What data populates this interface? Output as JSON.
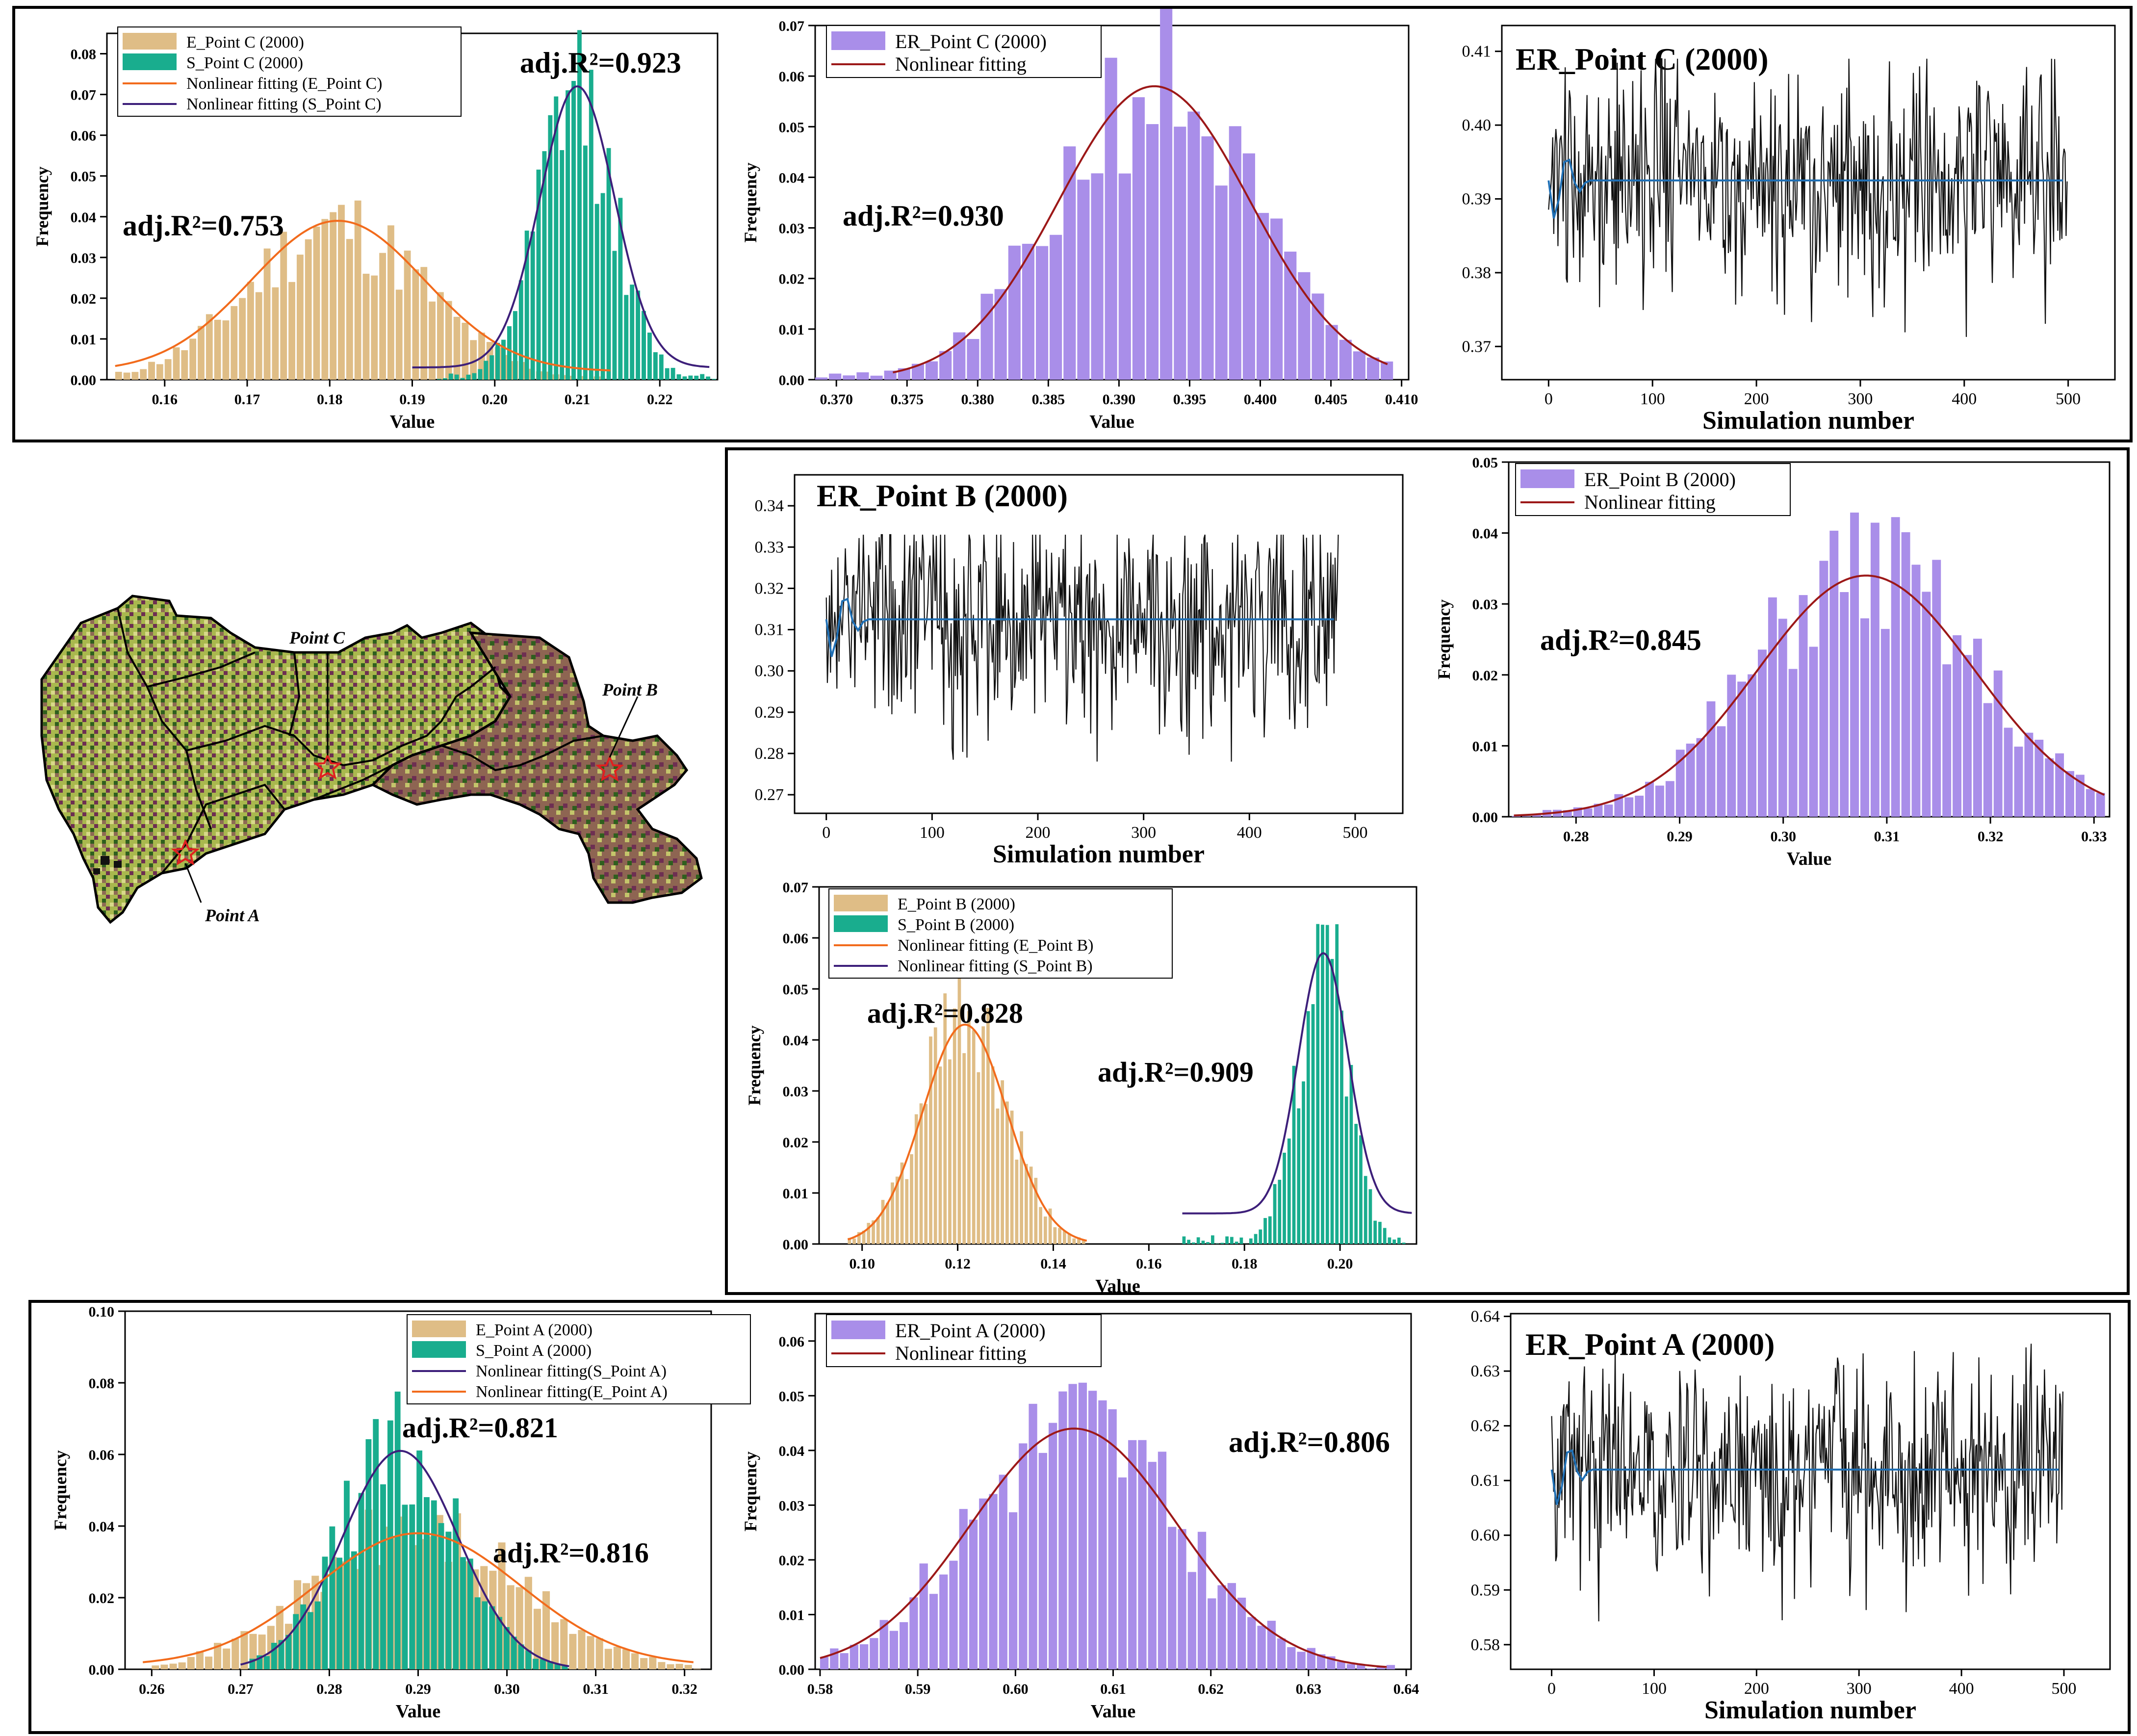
{
  "colors": {
    "tan": "#dfbd86",
    "teal": "#19ad8e",
    "purple": "#a98ee9",
    "orange": "#f26b1c",
    "darkpurple": "#3d1f7a",
    "darkred": "#9c1818",
    "trace": "#111111",
    "mean": "#1f6fb4"
  },
  "panel_c": {
    "hist_es": {
      "legend": [
        "E_Point C (2000)",
        "S_Point C (2000)",
        "Nonlinear fitting (E_Point C)",
        "Nonlinear fitting (S_Point C)"
      ],
      "xlabel": "Value",
      "ylabel": "Frequency",
      "x_ticks": [
        "0.16",
        "0.17",
        "0.18",
        "0.19",
        "0.20",
        "0.21",
        "0.22"
      ],
      "y_ticks": [
        "0.00",
        "0.01",
        "0.02",
        "0.03",
        "0.04",
        "0.05",
        "0.06",
        "0.07",
        "0.08"
      ],
      "annotations": [
        "adj.R²=0.753",
        "adj.R²=0.923"
      ]
    },
    "hist_er": {
      "legend": [
        "ER_Point C (2000)",
        "Nonlinear fitting"
      ],
      "xlabel": "Value",
      "ylabel": "Frequency",
      "x_ticks": [
        "0.370",
        "0.375",
        "0.380",
        "0.385",
        "0.390",
        "0.395",
        "0.400",
        "0.405",
        "0.410"
      ],
      "y_ticks": [
        "0.00",
        "0.01",
        "0.02",
        "0.03",
        "0.04",
        "0.05",
        "0.06",
        "0.07"
      ],
      "annotations": [
        "adj.R²=0.930"
      ]
    },
    "trace": {
      "title": "ER_Point C (2000)",
      "xlabel": "Simulation number",
      "x_ticks": [
        "0",
        "100",
        "200",
        "300",
        "400",
        "500"
      ],
      "y_ticks": [
        "0.37",
        "0.38",
        "0.39",
        "0.40",
        "0.41"
      ]
    }
  },
  "panel_b": {
    "trace": {
      "title": "ER_Point B (2000)",
      "xlabel": "Simulation number",
      "x_ticks": [
        "0",
        "100",
        "200",
        "300",
        "400",
        "500"
      ],
      "y_ticks": [
        "0.27",
        "0.28",
        "0.29",
        "0.30",
        "0.31",
        "0.32",
        "0.33",
        "0.34"
      ]
    },
    "hist_er": {
      "legend": [
        "ER_Point B (2000)",
        "Nonlinear fitting"
      ],
      "xlabel": "Value",
      "ylabel": "Frequency",
      "x_ticks": [
        "0.28",
        "0.29",
        "0.30",
        "0.31",
        "0.32",
        "0.33"
      ],
      "y_ticks": [
        "0.00",
        "0.01",
        "0.02",
        "0.03",
        "0.04",
        "0.05"
      ],
      "annotations": [
        "adj.R²=0.845"
      ]
    },
    "hist_es": {
      "legend": [
        "E_Point B (2000)",
        "S_Point B (2000)",
        "Nonlinear fitting (E_Point B)",
        "Nonlinear fitting (S_Point B)"
      ],
      "xlabel": "Value",
      "ylabel": "Frequency",
      "x_ticks": [
        "0.10",
        "0.12",
        "0.14",
        "0.16",
        "0.18",
        "0.20"
      ],
      "y_ticks": [
        "0.00",
        "0.01",
        "0.02",
        "0.03",
        "0.04",
        "0.05",
        "0.06",
        "0.07"
      ],
      "annotations": [
        "adj.R²=0.828",
        "adj.R²=0.909"
      ]
    }
  },
  "panel_a": {
    "hist_es": {
      "legend": [
        "E_Point A (2000)",
        "S_Point A (2000)",
        "Nonlinear fitting(S_Point A)",
        "Nonlinear fitting(E_Point A)"
      ],
      "xlabel": "Value",
      "ylabel": "Frequency",
      "x_ticks": [
        "0.26",
        "0.27",
        "0.28",
        "0.29",
        "0.30",
        "0.31",
        "0.32"
      ],
      "y_ticks": [
        "0.00",
        "0.02",
        "0.04",
        "0.06",
        "0.08",
        "0.10"
      ],
      "annotations": [
        "adj.R²=0.821",
        "adj.R²=0.816"
      ]
    },
    "hist_er": {
      "legend": [
        "ER_Point A (2000)",
        "Nonlinear fitting"
      ],
      "xlabel": "Value",
      "ylabel": "Frequency",
      "x_ticks": [
        "0.58",
        "0.59",
        "0.60",
        "0.61",
        "0.62",
        "0.63",
        "0.64"
      ],
      "y_ticks": [
        "0.00",
        "0.01",
        "0.02",
        "0.03",
        "0.04",
        "0.05",
        "0.06"
      ],
      "annotations": [
        "adj.R²=0.806"
      ]
    },
    "trace": {
      "title": "ER_Point A (2000)",
      "xlabel": "Simulation number",
      "x_ticks": [
        "0",
        "100",
        "200",
        "300",
        "400",
        "500"
      ],
      "y_ticks": [
        "0.58",
        "0.59",
        "0.60",
        "0.61",
        "0.62",
        "0.63",
        "0.64"
      ]
    }
  },
  "map": {
    "labels": [
      "Point C",
      "Point B",
      "Point A"
    ]
  },
  "chart_data": [
    {
      "id": "c_es",
      "type": "bar",
      "title": "",
      "xlabel": "Value",
      "ylabel": "Frequency",
      "xlim": [
        0.153,
        0.227
      ],
      "ylim": [
        0,
        0.085
      ],
      "series": [
        {
          "name": "E_Point C (2000)",
          "kind": "hist",
          "color": "tan",
          "mean": 0.181,
          "sd": 0.0105,
          "peak": 0.037,
          "range": [
            0.154,
            0.214
          ],
          "bins": 60,
          "seed": 11
        },
        {
          "name": "S_Point C (2000)",
          "kind": "hist",
          "color": "teal",
          "mean": 0.21,
          "sd": 0.0045,
          "peak": 0.069,
          "range": [
            0.193,
            0.227
          ],
          "bins": 48,
          "seed": 12
        },
        {
          "name": "Nonlinear fitting (E_Point C)",
          "kind": "fit",
          "color": "orange",
          "mean": 0.181,
          "sd": 0.0105,
          "peak": 0.037,
          "base": 0.002,
          "range": [
            0.154,
            0.214
          ]
        },
        {
          "name": "Nonlinear fitting (S_Point C)",
          "kind": "fit",
          "color": "darkpurple",
          "mean": 0.21,
          "sd": 0.0045,
          "peak": 0.069,
          "base": 0.003,
          "range": [
            0.19,
            0.226
          ]
        }
      ]
    },
    {
      "id": "c_er",
      "type": "bar",
      "title": "",
      "xlabel": "Value",
      "ylabel": "Frequency",
      "xlim": [
        0.3685,
        0.4105
      ],
      "ylim": [
        0,
        0.07
      ],
      "series": [
        {
          "name": "ER_Point C (2000)",
          "kind": "hist",
          "color": "purple",
          "mean": 0.3925,
          "sd": 0.0068,
          "peak": 0.058,
          "range": [
            0.3685,
            0.4095
          ],
          "bins": 42,
          "seed": 21
        },
        {
          "name": "Nonlinear fitting",
          "kind": "fit",
          "color": "darkred",
          "mean": 0.3925,
          "sd": 0.0068,
          "peak": 0.058,
          "base": 0.0,
          "range": [
            0.374,
            0.409
          ]
        }
      ]
    },
    {
      "id": "c_tr",
      "type": "line",
      "title": "ER_Point C (2000)",
      "xlabel": "Simulation number",
      "ylabel": "",
      "xlim": [
        -45,
        545
      ],
      "ylim": [
        0.3655,
        0.4135
      ],
      "trace": {
        "n": 500,
        "mean": 0.3925,
        "sd": 0.0068,
        "lo": 0.37,
        "hi": 0.409,
        "seed": 31
      }
    },
    {
      "id": "b_tr",
      "type": "line",
      "title": "ER_Point B (2000)",
      "xlabel": "Simulation number",
      "ylabel": "",
      "xlim": [
        -30,
        545
      ],
      "ylim": [
        0.2655,
        0.3475
      ],
      "trace": {
        "n": 485,
        "mean": 0.3125,
        "sd": 0.012,
        "lo": 0.276,
        "hi": 0.333,
        "seed": 41
      }
    },
    {
      "id": "b_er",
      "type": "bar",
      "title": "",
      "xlabel": "Value",
      "ylabel": "Frequency",
      "xlim": [
        0.2735,
        0.3315
      ],
      "ylim": [
        0,
        0.05
      ],
      "series": [
        {
          "name": "ER_Point B (2000)",
          "kind": "hist",
          "color": "purple",
          "mean": 0.308,
          "sd": 0.0105,
          "peak": 0.034,
          "range": [
            0.2738,
            0.3312
          ],
          "bins": 58,
          "seed": 51
        },
        {
          "name": "Nonlinear fitting",
          "kind": "fit",
          "color": "darkred",
          "mean": 0.308,
          "sd": 0.0105,
          "peak": 0.034,
          "base": 0.0,
          "range": [
            0.274,
            0.331
          ]
        }
      ]
    },
    {
      "id": "b_es",
      "type": "bar",
      "title": "",
      "xlabel": "Value",
      "ylabel": "Frequency",
      "xlim": [
        0.091,
        0.216
      ],
      "ylim": [
        0,
        0.07
      ],
      "series": [
        {
          "name": "E_Point B (2000)",
          "kind": "hist",
          "color": "tan",
          "mean": 0.1215,
          "sd": 0.0088,
          "peak": 0.043,
          "range": [
            0.097,
            0.147
          ],
          "bins": 50,
          "seed": 61
        },
        {
          "name": "S_Point B (2000)",
          "kind": "hist",
          "color": "teal",
          "mean": 0.1965,
          "sd": 0.0052,
          "peak": 0.057,
          "range": [
            0.167,
            0.215
          ],
          "bins": 48,
          "seed": 62
        },
        {
          "name": "Nonlinear fitting (E_Point B)",
          "kind": "fit",
          "color": "orange",
          "mean": 0.1215,
          "sd": 0.0088,
          "peak": 0.043,
          "base": 0.0,
          "range": [
            0.097,
            0.147
          ]
        },
        {
          "name": "Nonlinear fitting (S_Point B)",
          "kind": "fit",
          "color": "darkpurple",
          "mean": 0.1965,
          "sd": 0.0052,
          "peak": 0.051,
          "base": 0.006,
          "range": [
            0.167,
            0.215
          ]
        }
      ]
    },
    {
      "id": "a_es",
      "type": "bar",
      "title": "",
      "xlabel": "Value",
      "ylabel": "Frequency",
      "xlim": [
        0.257,
        0.323
      ],
      "ylim": [
        0,
        0.1
      ],
      "series": [
        {
          "name": "E_Point A (2000)",
          "kind": "hist",
          "color": "tan",
          "mean": 0.29,
          "sd": 0.0115,
          "peak": 0.038,
          "range": [
            0.26,
            0.322
          ],
          "bins": 62,
          "seed": 71
        },
        {
          "name": "S_Point A (2000)",
          "kind": "hist",
          "color": "teal",
          "mean": 0.288,
          "sd": 0.0065,
          "peak": 0.061,
          "range": [
            0.271,
            0.307
          ],
          "bins": 44,
          "seed": 72
        },
        {
          "name": "Nonlinear fitting(S_Point A)",
          "kind": "fit",
          "color": "darkpurple",
          "mean": 0.288,
          "sd": 0.0065,
          "peak": 0.061,
          "base": 0.0,
          "range": [
            0.27,
            0.307
          ]
        },
        {
          "name": "Nonlinear fitting(E_Point A)",
          "kind": "fit",
          "color": "orange",
          "mean": 0.29,
          "sd": 0.0115,
          "peak": 0.037,
          "base": 0.001,
          "range": [
            0.259,
            0.321
          ]
        }
      ]
    },
    {
      "id": "a_er",
      "type": "bar",
      "title": "",
      "xlabel": "Value",
      "ylabel": "Frequency",
      "xlim": [
        0.5795,
        0.6405
      ],
      "ylim": [
        0,
        0.065
      ],
      "series": [
        {
          "name": "ER_Point A (2000)",
          "kind": "hist",
          "color": "purple",
          "mean": 0.606,
          "sd": 0.0105,
          "peak": 0.044,
          "range": [
            0.58,
            0.639
          ],
          "bins": 58,
          "seed": 81
        },
        {
          "name": "Nonlinear fitting",
          "kind": "fit",
          "color": "darkred",
          "mean": 0.606,
          "sd": 0.0105,
          "peak": 0.044,
          "base": 0.0,
          "range": [
            0.58,
            0.638
          ]
        }
      ]
    },
    {
      "id": "a_tr",
      "type": "line",
      "title": "ER_Point A (2000)",
      "xlabel": "Simulation number",
      "ylabel": "",
      "xlim": [
        -40,
        545
      ],
      "ylim": [
        0.5755,
        0.6405
      ],
      "trace": {
        "n": 500,
        "mean": 0.612,
        "sd": 0.0085,
        "lo": 0.584,
        "hi": 0.635,
        "seed": 91
      }
    }
  ]
}
